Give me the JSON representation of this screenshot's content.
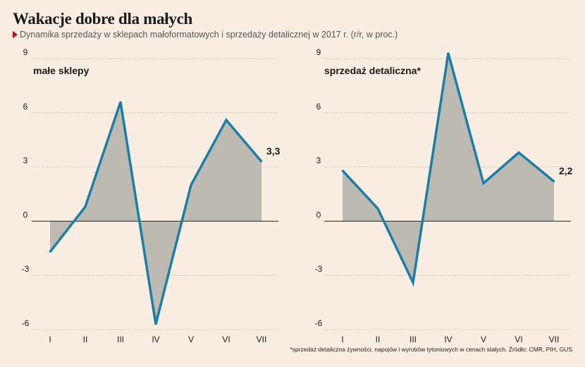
{
  "header": {
    "title": "Wakacje dobre dla małych",
    "subtitle": "Dynamika sprzedaży w sklepach małoformatowych i sprzedaży detalicznej w 2017 r.  (r/r, w proc.)"
  },
  "footnote": "*sprzedaż detaliczna żywności, napojów i wyrobów tytoniowych w cenach stałych. Źródło: CMR, PIH, GUS",
  "colors": {
    "line": "#1a7fa8",
    "area": "#bcbab1",
    "grid": "#b4aca2",
    "zero": "#222222",
    "accent": "#d0021b"
  },
  "chart_data": [
    {
      "type": "area",
      "title": "małe sklepy",
      "categories": [
        "I",
        "II",
        "III",
        "IV",
        "V",
        "VI",
        "VII"
      ],
      "series": [
        {
          "values": [
            -1.7,
            0.8,
            6.6,
            -5.7,
            2.0,
            5.6,
            3.3
          ]
        }
      ],
      "yticks": [
        "9",
        "6",
        "3",
        "0",
        "-3",
        "-6"
      ],
      "ylim": [
        -6,
        9
      ],
      "last_label": "3,3",
      "grid": true
    },
    {
      "type": "area",
      "title": "sprzedaż detaliczna*",
      "categories": [
        "I",
        "II",
        "III",
        "IV",
        "V",
        "VI",
        "VII"
      ],
      "series": [
        {
          "values": [
            2.8,
            0.7,
            -3.4,
            9.3,
            2.1,
            3.8,
            2.2
          ]
        }
      ],
      "yticks": [
        "9",
        "6",
        "3",
        "0",
        "-3",
        "-6"
      ],
      "ylim": [
        -6,
        9
      ],
      "last_label": "2,2",
      "grid": true
    }
  ]
}
